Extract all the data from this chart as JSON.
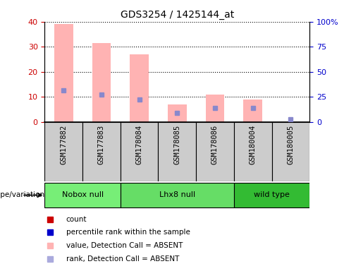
{
  "title": "GDS3254 / 1425144_at",
  "samples": [
    "GSM177882",
    "GSM177883",
    "GSM178084",
    "GSM178085",
    "GSM178086",
    "GSM180004",
    "GSM180005"
  ],
  "pink_bars": [
    39.0,
    31.5,
    27.0,
    7.0,
    11.0,
    9.0,
    0.0
  ],
  "blue_squares": [
    12.5,
    11.0,
    9.0,
    3.5,
    5.5,
    5.5,
    1.0
  ],
  "pink_bar_color": "#FFB3B3",
  "blue_sq_color": "#8888CC",
  "left_ylim": [
    0,
    40
  ],
  "right_ylim": [
    0,
    100
  ],
  "left_yticks": [
    0,
    10,
    20,
    30,
    40
  ],
  "right_yticks": [
    0,
    25,
    50,
    75,
    100
  ],
  "right_yticklabels": [
    "0",
    "25",
    "50",
    "75",
    "100%"
  ],
  "left_tick_color": "#CC0000",
  "right_tick_color": "#0000CC",
  "groups": [
    {
      "label": "Nobox null",
      "samples": [
        0,
        1
      ],
      "color": "#77EE77"
    },
    {
      "label": "Lhx8 null",
      "samples": [
        2,
        3,
        4
      ],
      "color": "#66DD66"
    },
    {
      "label": "wild type",
      "samples": [
        5,
        6
      ],
      "color": "#33BB33"
    }
  ],
  "sample_box_color": "#CCCCCC",
  "genotype_label": "genotype/variation",
  "legend_items": [
    {
      "label": "count",
      "color": "#CC0000"
    },
    {
      "label": "percentile rank within the sample",
      "color": "#0000CC"
    },
    {
      "label": "value, Detection Call = ABSENT",
      "color": "#FFB3B3"
    },
    {
      "label": "rank, Detection Call = ABSENT",
      "color": "#AAAADD"
    }
  ],
  "pink_bar_width": 0.5
}
